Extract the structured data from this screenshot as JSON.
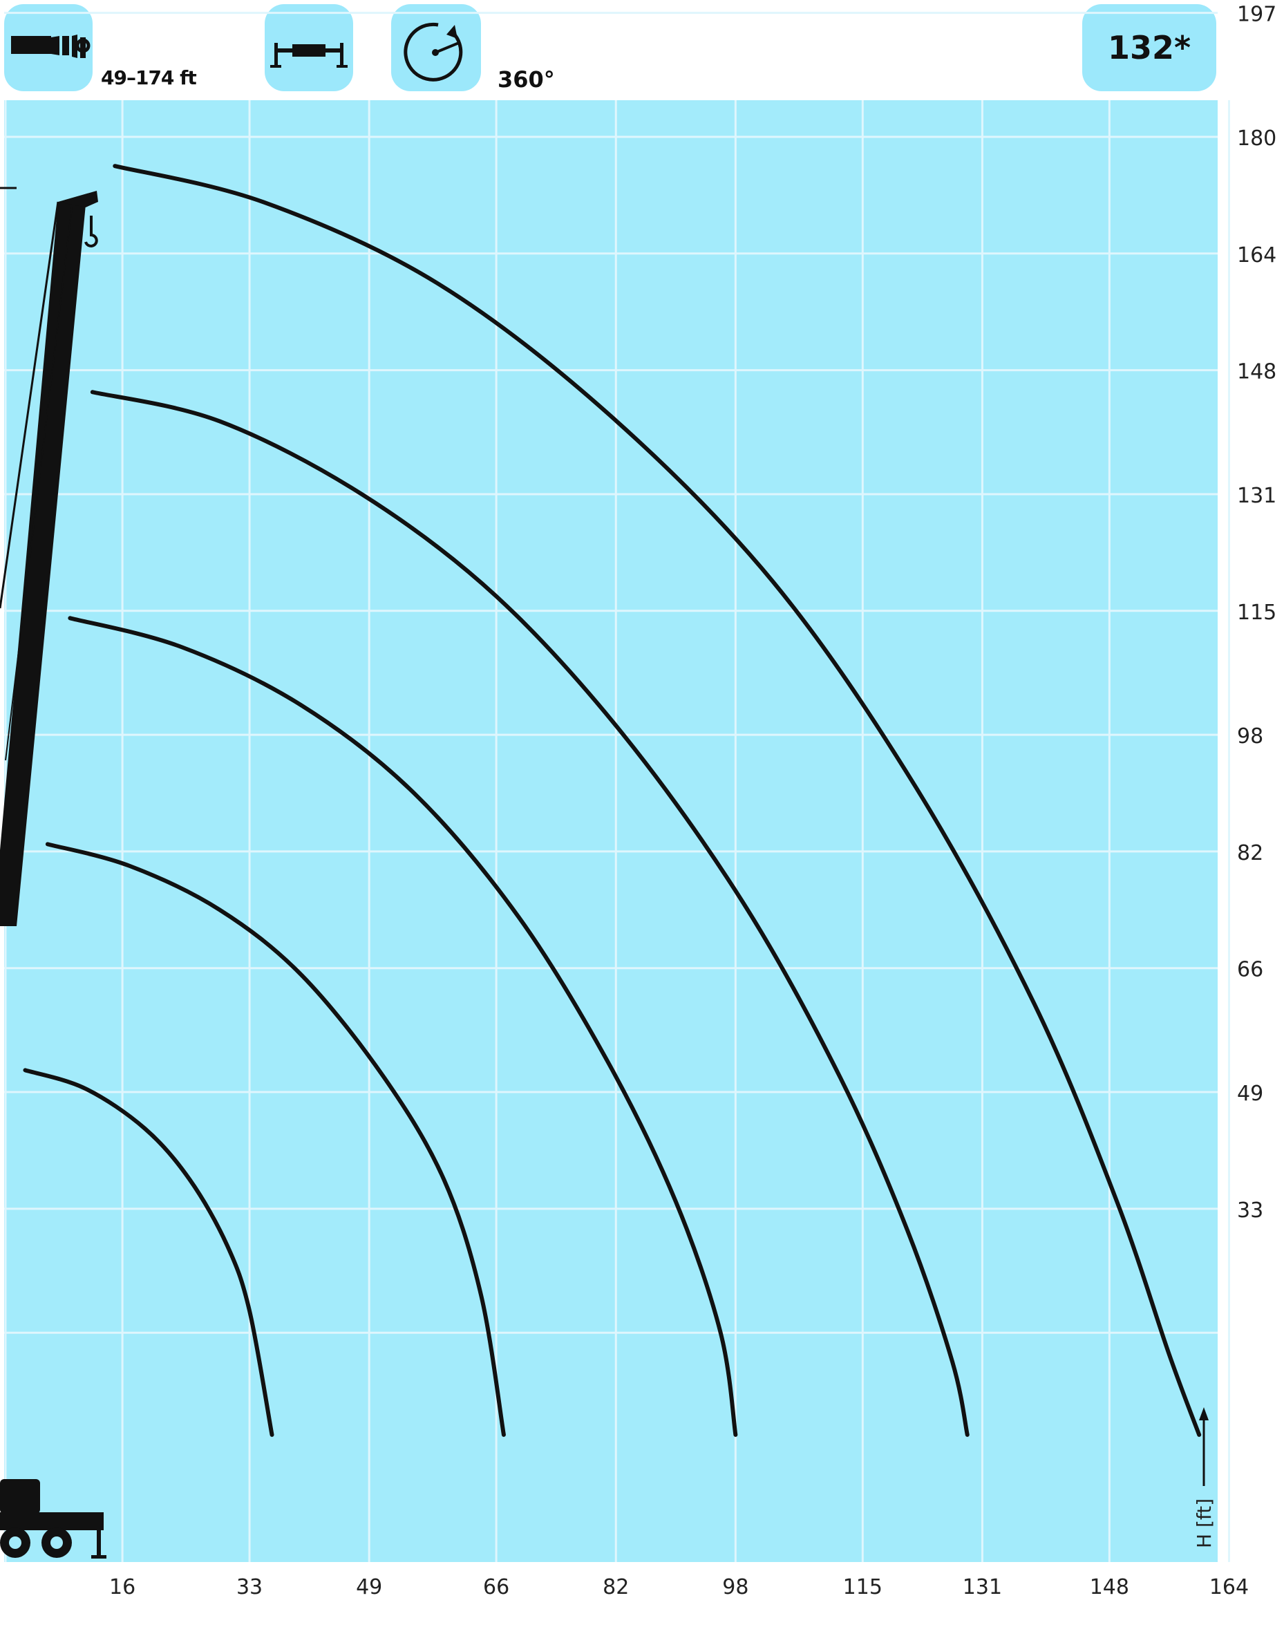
{
  "header": {
    "boom_range": "49–174 ft",
    "slew_angle": "360°",
    "capacity": "132*",
    "icons": [
      "telescopic-boom-icon",
      "outrigger-icon",
      "slew-rotation-icon"
    ]
  },
  "colors": {
    "background": "#a3ebfb",
    "grid": "#dff6fd",
    "curve": "#111111",
    "badge": "#9ce8fb"
  },
  "chart_data": {
    "type": "line",
    "title": "",
    "xlabel": "",
    "ylabel": "H [ft]",
    "xlim": [
      0,
      164
    ],
    "ylim": [
      0,
      197
    ],
    "x_ticks": [
      "16",
      "33",
      "49",
      "66",
      "82",
      "98",
      "115",
      "131",
      "148",
      "164"
    ],
    "y_ticks": [
      "33",
      "49",
      "66",
      "82",
      "98",
      "115",
      "131",
      "148",
      "164",
      "180",
      "197"
    ],
    "grid": true,
    "series": [
      {
        "x": [
          3,
          11,
          19,
          25,
          30,
          33,
          36
        ],
        "y": [
          52,
          49.5,
          44,
          37,
          28,
          19,
          2
        ]
      },
      {
        "x": [
          6,
          17,
          29,
          40,
          51,
          59,
          64,
          67
        ],
        "y": [
          83,
          80,
          74,
          65,
          51,
          37,
          21,
          2
        ]
      },
      {
        "x": [
          9,
          24,
          40,
          55,
          69,
          81,
          90,
          96,
          98
        ],
        "y": [
          114,
          110,
          102,
          90,
          73,
          53,
          34,
          16,
          2
        ]
      },
      {
        "x": [
          12,
          29,
          48,
          66,
          83,
          99,
          112,
          121,
          127,
          129
        ],
        "y": [
          145,
          141,
          131,
          117,
          98,
          75,
          51,
          30,
          12,
          2
        ]
      },
      {
        "x": [
          15,
          35,
          58,
          81,
          103,
          122,
          138,
          149,
          156,
          160
        ],
        "y": [
          176,
          171,
          160,
          142,
          119,
          91,
          61,
          34,
          13,
          2
        ]
      }
    ]
  }
}
